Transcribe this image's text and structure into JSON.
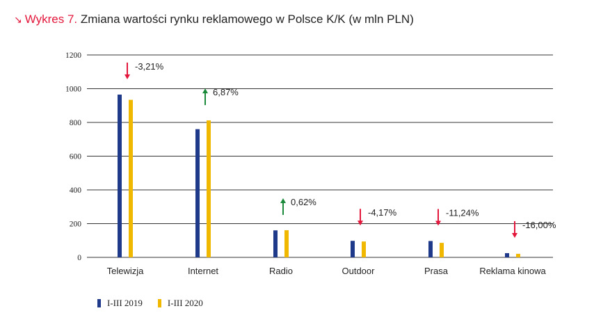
{
  "header": {
    "prefix": "Wykres 7.",
    "arrow_icon": "arrow-down-right-icon",
    "title": "Zmiana wartości rynku reklamowego w Polsce K/K (w mln PLN)"
  },
  "colors": {
    "series_2019": "#1f3a8a",
    "series_2020": "#f0b800",
    "up": "#1a8a3a",
    "down": "#e3173b",
    "grid": "#333333",
    "accent": "#e3173b"
  },
  "chart_data": {
    "type": "bar",
    "title": "Zmiana wartości rynku reklamowego w Polsce K/K (w mln PLN)",
    "categories": [
      "Telewizja",
      "Internet",
      "Radio",
      "Outdoor",
      "Prasa",
      "Reklama kinowa"
    ],
    "series": [
      {
        "name": "I-III 2019",
        "values": [
          965,
          760,
          160,
          98,
          97,
          25
        ]
      },
      {
        "name": "I-III 2020",
        "values": [
          934,
          812,
          161,
          94,
          86,
          21
        ]
      }
    ],
    "annotations": [
      {
        "category": "Telewizja",
        "label": "-3,21%",
        "direction": "down"
      },
      {
        "category": "Internet",
        "label": "6,87%",
        "direction": "up"
      },
      {
        "category": "Radio",
        "label": "0,62%",
        "direction": "up"
      },
      {
        "category": "Outdoor",
        "label": "-4,17%",
        "direction": "down"
      },
      {
        "category": "Prasa",
        "label": "-11,24%",
        "direction": "down"
      },
      {
        "category": "Reklama kinowa",
        "label": "-16,00%",
        "direction": "down"
      }
    ],
    "yticks": [
      "0",
      "200",
      "400",
      "600",
      "800",
      "1000",
      "1200"
    ],
    "ylim": [
      0,
      1200
    ],
    "grid": true,
    "legend_position": "bottom-left"
  }
}
